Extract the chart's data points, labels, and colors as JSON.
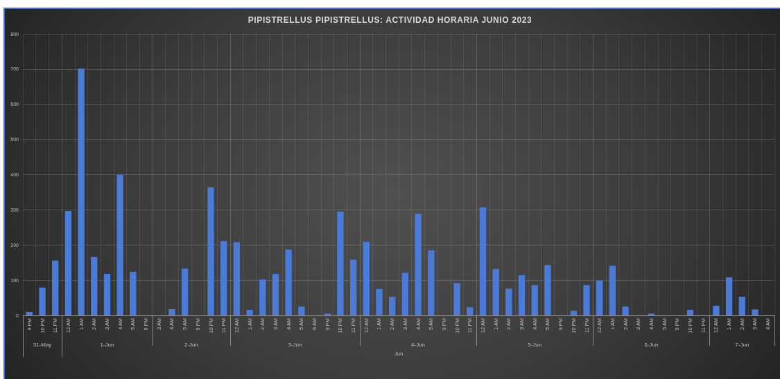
{
  "chart_data": [
    {
      "type": "bar",
      "xlabel": "31-May",
      "categories": [
        "9 PM",
        "10 PM",
        "11 PM"
      ],
      "values": [
        10,
        79,
        156
      ],
      "color": "#4a7bd8",
      "ylim": [
        0,
        800
      ],
      "yticks": [
        0,
        100,
        200,
        300,
        400,
        500,
        600,
        700,
        800
      ],
      "grid": true
    },
    {
      "type": "bar",
      "xlabel": "1-Jun",
      "categories": [
        "12 AM",
        "1 AM",
        "2 AM",
        "3 AM",
        "4 AM",
        "5 AM",
        "9 PM"
      ],
      "values": [
        297,
        701,
        166,
        118,
        400,
        124,
        0
      ],
      "color": "#4a7bd8",
      "ylim": [
        0,
        800
      ],
      "yticks": [
        0,
        100,
        200,
        300,
        400,
        500,
        600,
        700,
        800
      ],
      "grid": true,
      "tick_labels": "x"
    },
    {
      "type": "bar",
      "xlabel": "2-Jun",
      "categories": [
        "3 AM",
        "4 AM",
        "5 AM",
        "9 PM",
        "10 PM",
        "11 PM"
      ],
      "values": [
        0,
        18,
        133,
        0,
        364,
        211
      ],
      "color": "#4a7bd8",
      "ylim": [
        0,
        800
      ],
      "yticks": [
        0,
        100,
        200,
        300,
        400,
        500,
        600,
        700,
        800
      ],
      "grid": true,
      "tick_labels": "x"
    },
    {
      "type": "bar",
      "xlabel": "3-Jun",
      "categories": [
        "12 AM",
        "1 AM",
        "2 AM",
        "3 AM",
        "4 AM",
        "5 AM",
        "6 AM",
        "9 PM",
        "10 PM",
        "11 PM"
      ],
      "values": [
        208,
        16,
        102,
        118,
        187,
        25,
        0,
        5,
        295,
        158
      ],
      "color": "#4a7bd8",
      "ylim": [
        0,
        800
      ],
      "yticks": [
        0,
        100,
        200,
        300,
        400,
        500,
        600,
        700,
        800
      ],
      "grid": true,
      "tick_labels": "x"
    },
    {
      "type": "bar",
      "title": "PIPISTRELLUS PIPISTRELLUS: ACTIVIDAD HORARIA JUNIO 2023",
      "xlabel": "4-Jun",
      "annotations": [
        "Jun"
      ],
      "categories": [
        "12 AM",
        "1 AM",
        "2 AM",
        "3 AM",
        "4 AM",
        "5 AM",
        "9 PM",
        "10 PM",
        "11 PM"
      ],
      "values": [
        209,
        75,
        53,
        121,
        289,
        185,
        0,
        92,
        23
      ],
      "color": "#4a7bd8",
      "ylim": [
        0,
        800
      ],
      "yticks": [
        0,
        100,
        200,
        300,
        400,
        500,
        600,
        700,
        800
      ],
      "grid": true,
      "tick_labels": "x"
    },
    {
      "type": "bar",
      "xlabel": "5-Jun",
      "categories": [
        "12 AM",
        "1 AM",
        "2 AM",
        "3 AM",
        "4 AM",
        "5 AM",
        "9 PM",
        "10 PM",
        "11 PM"
      ],
      "values": [
        307,
        132,
        76,
        114,
        86,
        143,
        0,
        13,
        86
      ],
      "color": "#4a7bd8",
      "ylim": [
        0,
        800
      ],
      "yticks": [
        0,
        100,
        200,
        300,
        400,
        500,
        600,
        700,
        800
      ],
      "grid": true,
      "tick_labels": "x"
    },
    {
      "type": "bar",
      "xlabel": "6-Jun",
      "categories": [
        "12 AM",
        "1 AM",
        "2 AM",
        "3 AM",
        "4 AM",
        "5 AM",
        "9 PM",
        "10 PM",
        "11 PM"
      ],
      "values": [
        99,
        141,
        25,
        0,
        5,
        0,
        0,
        16,
        0
      ],
      "color": "#4a7bd8",
      "ylim": [
        0,
        800
      ],
      "yticks": [
        0,
        100,
        200,
        300,
        400,
        500,
        600,
        700,
        800
      ],
      "grid": true,
      "tick_labels": "x"
    },
    {
      "type": "bar",
      "xlabel": "7-Jun",
      "categories": [
        "12 AM",
        "1 AM",
        "2 AM",
        "3 AM",
        "4 AM"
      ],
      "values": [
        27,
        108,
        53,
        17,
        0
      ],
      "color": "#4a7bd8",
      "ylim": [
        0,
        800
      ],
      "yticks": [
        0,
        100,
        200,
        300,
        400,
        500,
        600,
        700,
        800
      ],
      "grid": true,
      "tick_labels": "x"
    }
  ]
}
